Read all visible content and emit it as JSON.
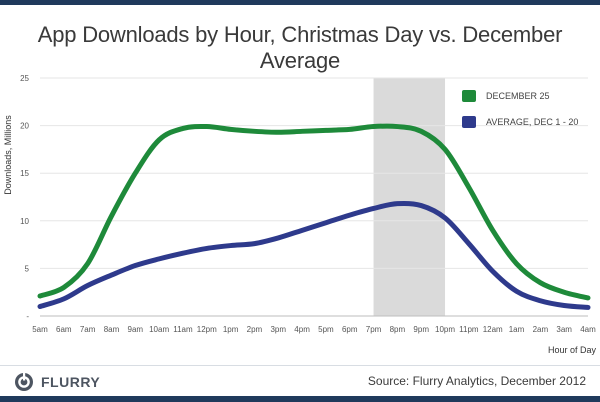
{
  "title": "App Downloads by Hour, Christmas Day vs. December Average",
  "footer": {
    "brand": "FLURRY",
    "source": "Source: Flurry Analytics, December 2012"
  },
  "colors": {
    "dec25": "#1e8a3a",
    "average": "#2e3a8c",
    "highlight": "#dadada",
    "axis_text": "#555555",
    "brand_bar": "#203a5c"
  },
  "chart_data": {
    "type": "line",
    "xlabel": "Hour of Day",
    "ylabel": "Downloads, Millions",
    "ylim": [
      0,
      25
    ],
    "yticks": [
      "-",
      "5",
      "10",
      "15",
      "20",
      "25"
    ],
    "categories": [
      "5am",
      "6am",
      "7am",
      "8am",
      "9am",
      "10am",
      "11am",
      "12pm",
      "1pm",
      "2pm",
      "3pm",
      "4pm",
      "5pm",
      "6pm",
      "7pm",
      "8pm",
      "9pm",
      "10pm",
      "11pm",
      "12am",
      "1am",
      "2am",
      "3am",
      "4am"
    ],
    "highlight_range": [
      "7pm",
      "10pm"
    ],
    "grid": true,
    "legend_position": "top-right",
    "series": [
      {
        "name": "DECEMBER 25",
        "color": "#1e8a3a",
        "values": [
          2.1,
          3.0,
          5.5,
          10.5,
          15.0,
          18.5,
          19.7,
          19.9,
          19.6,
          19.4,
          19.3,
          19.4,
          19.5,
          19.6,
          19.9,
          19.9,
          19.4,
          17.5,
          13.5,
          9.0,
          5.5,
          3.5,
          2.5,
          1.9
        ]
      },
      {
        "name": "AVERAGE, DEC 1 - 20",
        "color": "#2e3a8c",
        "values": [
          1.0,
          1.8,
          3.2,
          4.3,
          5.3,
          6.0,
          6.6,
          7.1,
          7.4,
          7.6,
          8.2,
          9.0,
          9.8,
          10.6,
          11.3,
          11.8,
          11.6,
          10.3,
          7.6,
          4.7,
          2.6,
          1.6,
          1.1,
          0.9
        ]
      }
    ]
  }
}
